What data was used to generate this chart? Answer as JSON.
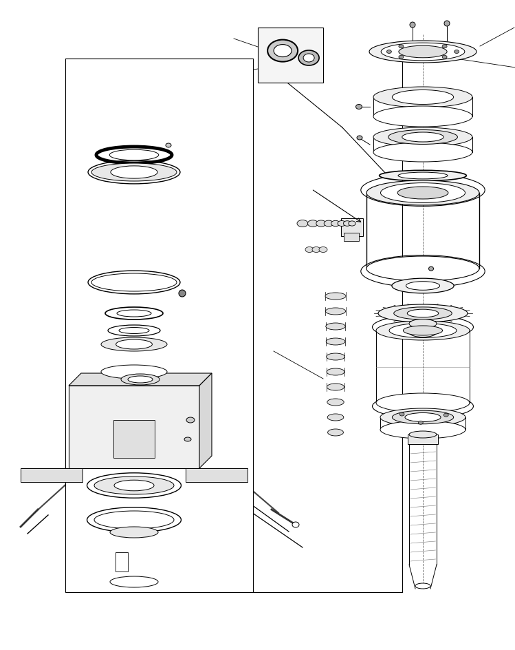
{
  "bg_color": "#ffffff",
  "line_color": "#000000",
  "line_width": 0.7,
  "fig_width": 7.49,
  "fig_height": 9.44,
  "dpi": 100
}
